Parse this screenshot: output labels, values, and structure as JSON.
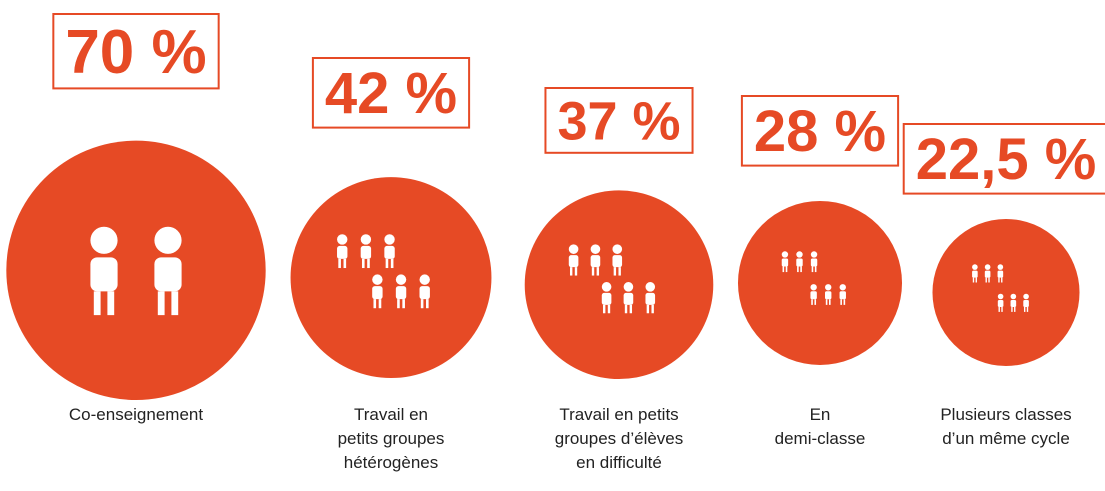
{
  "chart_data": {
    "type": "bubble",
    "categories": [
      [
        "Co-enseignement"
      ],
      [
        "Travail en",
        "petits groupes",
        "hétérogènes"
      ],
      [
        "Travail en petits",
        "groupes d’élèves",
        "en difficulté"
      ],
      [
        "En",
        "demi-classe"
      ],
      [
        "Plusieurs classes",
        "d’un même cycle"
      ]
    ],
    "values": [
      70,
      42,
      37,
      28,
      22.5
    ],
    "value_labels": [
      "70 %",
      "42 %",
      "37 %",
      "28 %",
      "22,5 %"
    ],
    "color": "#e64a25"
  }
}
